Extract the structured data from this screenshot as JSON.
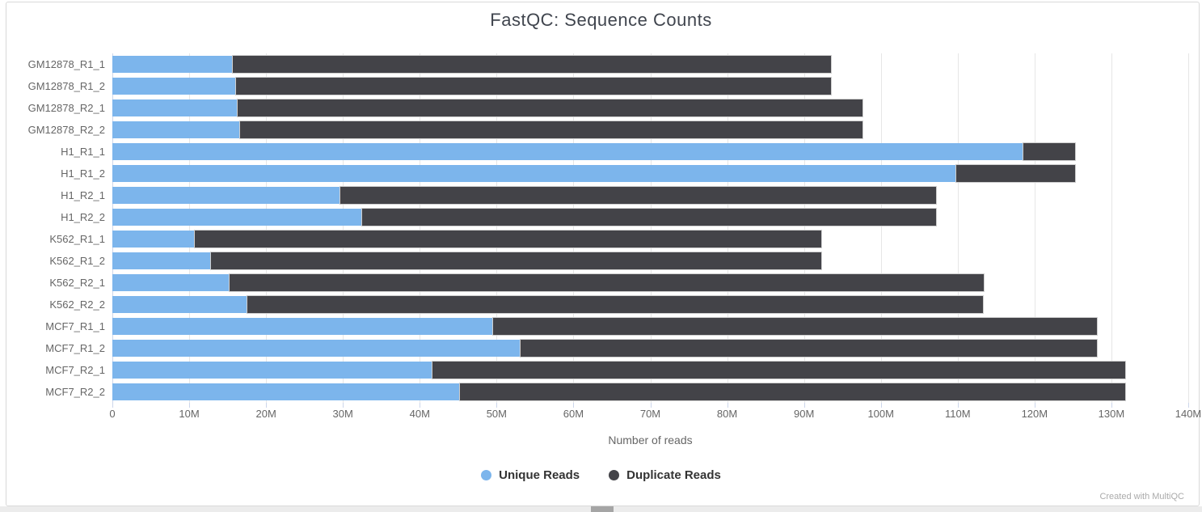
{
  "title": "FastQC: Sequence Counts",
  "watermark": "Created with MultiQC",
  "colors": {
    "unique": "#7cb5ec",
    "duplicate": "#434348",
    "gridline": "#e6e6e6",
    "axis_tick": "#ccd6eb",
    "axis_text": "#666666",
    "title_text": "#40454e",
    "legend_text": "#333333",
    "watermark_text": "#aaaaaa"
  },
  "chart_data": {
    "type": "bar",
    "orientation": "horizontal",
    "stacked": true,
    "title": "FastQC: Sequence Counts",
    "xlabel": "Number of reads",
    "ylabel": "",
    "grid": "vertical",
    "legend_position": "bottom",
    "xlim_millions": [
      0,
      140
    ],
    "x_tick_values_millions": [
      0,
      10,
      20,
      30,
      40,
      50,
      60,
      70,
      80,
      90,
      100,
      110,
      120,
      130,
      140
    ],
    "x_tick_labels": [
      "0",
      "10M",
      "20M",
      "30M",
      "40M",
      "50M",
      "60M",
      "70M",
      "80M",
      "90M",
      "100M",
      "110M",
      "120M",
      "130M",
      "140M"
    ],
    "categories": [
      "GM12878_R1_1",
      "GM12878_R1_2",
      "GM12878_R2_1",
      "GM12878_R2_2",
      "H1_R1_1",
      "H1_R1_2",
      "H1_R2_1",
      "H1_R2_2",
      "K562_R1_1",
      "K562_R1_2",
      "K562_R2_1",
      "K562_R2_2",
      "MCF7_R1_1",
      "MCF7_R1_2",
      "MCF7_R2_1",
      "MCF7_R2_2"
    ],
    "series": [
      {
        "name": "Unique Reads",
        "color": "#7cb5ec",
        "values_millions": [
          15.7,
          16.1,
          16.3,
          16.6,
          118.5,
          109.8,
          29.7,
          32.5,
          10.7,
          12.8,
          15.3,
          17.6,
          49.5,
          53.1,
          41.7,
          45.2
        ]
      },
      {
        "name": "Duplicate Reads",
        "color": "#434348",
        "values_millions": [
          77.8,
          77.4,
          81.3,
          81.0,
          6.8,
          15.5,
          77.5,
          74.7,
          81.5,
          79.4,
          98.1,
          95.7,
          78.6,
          75.0,
          90.1,
          86.6
        ]
      }
    ]
  },
  "legend": {
    "items": [
      {
        "label": "Unique Reads",
        "color": "#7cb5ec"
      },
      {
        "label": "Duplicate Reads",
        "color": "#434348"
      }
    ]
  }
}
